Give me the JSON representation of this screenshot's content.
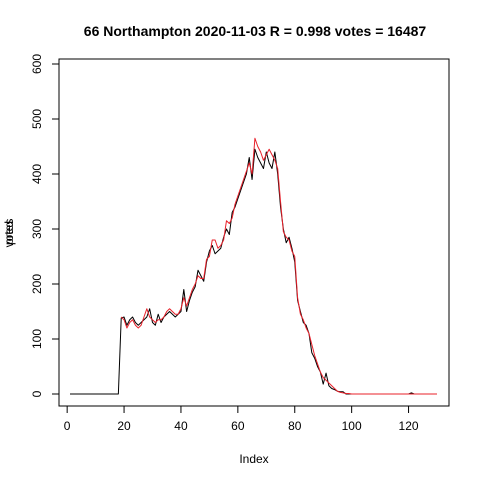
{
  "chart_data": {
    "type": "line",
    "title": "66 Northampton 2020-11-03 R = 0.998 votes = 16487",
    "xlabel": "Index",
    "ylabel": "votes",
    "ylabel_overlay": "pred",
    "xlim": [
      1,
      130
    ],
    "ylim": [
      0,
      600
    ],
    "x_ticks": [
      0,
      20,
      40,
      60,
      80,
      100,
      120
    ],
    "y_ticks": [
      0,
      100,
      200,
      300,
      400,
      500,
      600
    ],
    "grid": false,
    "legend": "none",
    "series": [
      {
        "color": "#000000",
        "values": [
          0,
          0,
          0,
          0,
          0,
          0,
          0,
          0,
          0,
          0,
          0,
          0,
          0,
          0,
          0,
          0,
          0,
          0,
          138,
          140,
          125,
          135,
          140,
          130,
          125,
          130,
          135,
          140,
          155,
          130,
          125,
          145,
          130,
          140,
          145,
          150,
          145,
          140,
          145,
          150,
          190,
          150,
          170,
          185,
          195,
          225,
          215,
          205,
          240,
          260,
          270,
          255,
          260,
          265,
          285,
          300,
          290,
          330,
          340,
          355,
          370,
          385,
          400,
          430,
          390,
          445,
          430,
          420,
          410,
          440,
          420,
          410,
          440,
          400,
          340,
          300,
          275,
          285,
          265,
          240,
          170,
          150,
          130,
          125,
          110,
          75,
          65,
          50,
          40,
          18,
          38,
          15,
          10,
          8,
          5,
          4,
          4,
          0,
          0,
          0,
          0,
          0,
          0,
          0,
          0,
          0,
          0,
          0,
          0,
          0,
          0,
          0,
          0,
          0,
          0,
          0,
          0,
          0,
          0,
          0,
          2,
          0,
          0,
          0,
          0,
          0,
          0,
          0,
          0,
          0
        ]
      },
      {
        "color": "#e8202a",
        "values": [
          null,
          null,
          null,
          null,
          null,
          null,
          null,
          null,
          null,
          null,
          null,
          null,
          null,
          null,
          null,
          null,
          null,
          null,
          140,
          135,
          120,
          130,
          135,
          125,
          120,
          125,
          140,
          155,
          140,
          135,
          130,
          135,
          135,
          140,
          150,
          155,
          150,
          145,
          145,
          155,
          175,
          160,
          175,
          190,
          200,
          215,
          210,
          210,
          245,
          250,
          280,
          280,
          265,
          270,
          280,
          315,
          310,
          320,
          345,
          360,
          375,
          390,
          405,
          420,
          400,
          465,
          450,
          440,
          425,
          435,
          445,
          435,
          425,
          410,
          350,
          295,
          285,
          280,
          260,
          250,
          175,
          145,
          135,
          120,
          110,
          90,
          70,
          55,
          40,
          30,
          25,
          20,
          15,
          10,
          5,
          3,
          2,
          1,
          1,
          0,
          0,
          0,
          0,
          0,
          0,
          0,
          0,
          0,
          0,
          0,
          0,
          0,
          0,
          0,
          0,
          0,
          0,
          0,
          0,
          0,
          0,
          0,
          0,
          0,
          0,
          0,
          0,
          0,
          0,
          0
        ]
      }
    ]
  }
}
